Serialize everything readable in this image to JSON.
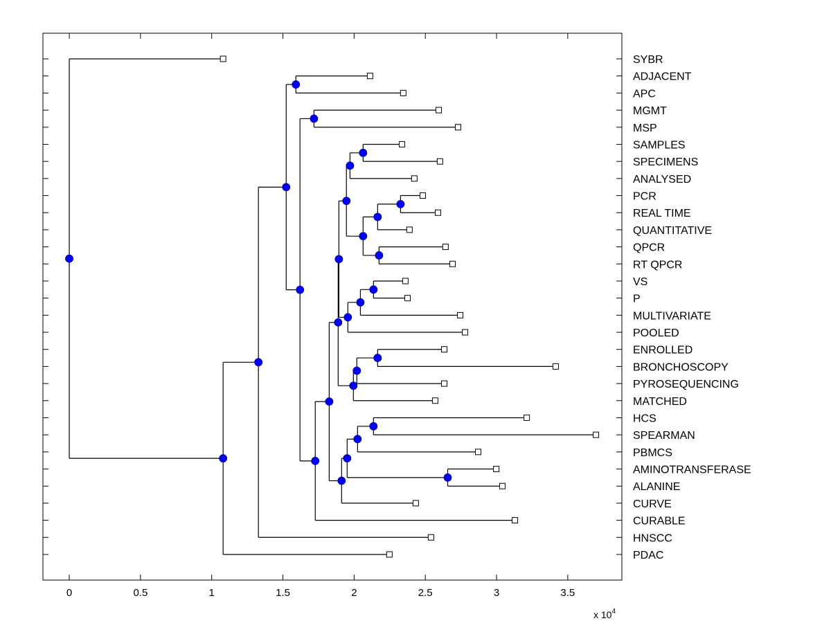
{
  "chart_data": {
    "type": "dendrogram",
    "title": "",
    "xlabel": "",
    "ylabel": "",
    "x_multiplier_label": "x 10",
    "x_multiplier_exponent": "4",
    "x_scale": 10000,
    "xlim": [
      -0.185,
      3.88
    ],
    "xticks": [
      0,
      0.5,
      1,
      1.5,
      2,
      2.5,
      3,
      3.5
    ],
    "xtick_labels": [
      "0",
      "0.5",
      "1",
      "1.5",
      "2",
      "2.5",
      "3",
      "3.5"
    ],
    "grid": false,
    "colors": {
      "internal_node_fill": "#0000ff",
      "leaf_marker_fill": "#ffffff",
      "line": "#000000"
    },
    "leaves": [
      {
        "label": "SYBR",
        "x": 1.08
      },
      {
        "label": "ADJACENT",
        "x": 2.112
      },
      {
        "label": "APC",
        "x": 2.345
      },
      {
        "label": "MGMT",
        "x": 2.594
      },
      {
        "label": "MSP",
        "x": 2.73
      },
      {
        "label": "SAMPLES",
        "x": 2.336
      },
      {
        "label": "SPECIMENS",
        "x": 2.603
      },
      {
        "label": "ANALYSED",
        "x": 2.423
      },
      {
        "label": "PCR",
        "x": 2.482
      },
      {
        "label": "REAL TIME",
        "x": 2.589
      },
      {
        "label": "QUANTITATIVE",
        "x": 2.389
      },
      {
        "label": "QPCR",
        "x": 2.642
      },
      {
        "label": "RT QPCR",
        "x": 2.691
      },
      {
        "label": "VS",
        "x": 2.36
      },
      {
        "label": "P",
        "x": 2.375
      },
      {
        "label": "MULTIVARIATE",
        "x": 2.745
      },
      {
        "label": "POOLED",
        "x": 2.779
      },
      {
        "label": "ENROLLED",
        "x": 2.633
      },
      {
        "label": "BRONCHOSCOPY",
        "x": 3.416
      },
      {
        "label": "PYROSEQUENCING",
        "x": 2.633
      },
      {
        "label": "MATCHED",
        "x": 2.569
      },
      {
        "label": "HCS",
        "x": 3.212
      },
      {
        "label": "SPEARMAN",
        "x": 3.698
      },
      {
        "label": "PBMCS",
        "x": 2.871
      },
      {
        "label": "AMINOTRANSFERASE",
        "x": 2.998
      },
      {
        "label": "ALANINE",
        "x": 3.041
      },
      {
        "label": "CURVE",
        "x": 2.433
      },
      {
        "label": "CURABLE",
        "x": 3.129
      },
      {
        "label": "HNSCC",
        "x": 2.54
      },
      {
        "label": "PDAC",
        "x": 2.248
      }
    ],
    "tree": {
      "x": 0.0,
      "children": [
        {
          "leaf": 0
        },
        {
          "x": 1.08,
          "children": [
            {
              "x": 1.328,
              "children": [
                {
                  "x": 1.523,
                  "children": [
                    {
                      "x": 1.591,
                      "children": [
                        {
                          "leaf": 1
                        },
                        {
                          "leaf": 2
                        }
                      ]
                    },
                    {
                      "x": 1.62,
                      "children": [
                        {
                          "x": 1.718,
                          "children": [
                            {
                              "leaf": 3
                            },
                            {
                              "leaf": 4
                            }
                          ]
                        },
                        {
                          "x": 1.727,
                          "children": [
                            {
                              "x": 1.825,
                              "children": [
                                {
                                  "x": 1.888,
                                  "children": [
                                    {
                                      "x": 1.893,
                                      "children": [
                                        {
                                          "x": 1.946,
                                          "children": [
                                            {
                                              "x": 1.971,
                                              "children": [
                                                {
                                                  "x": 2.063,
                                                  "children": [
                                                    {
                                                      "leaf": 5
                                                    },
                                                    {
                                                      "leaf": 6
                                                    }
                                                  ]
                                                },
                                                {
                                                  "leaf": 7
                                                }
                                              ]
                                            },
                                            {
                                              "x": 2.063,
                                              "children": [
                                                {
                                                  "x": 2.165,
                                                  "children": [
                                                    {
                                                      "x": 2.326,
                                                      "children": [
                                                        {
                                                          "leaf": 8
                                                        },
                                                        {
                                                          "leaf": 9
                                                        }
                                                      ]
                                                    },
                                                    {
                                                      "leaf": 10
                                                    }
                                                  ]
                                                },
                                                {
                                                  "x": 2.175,
                                                  "children": [
                                                    {
                                                      "leaf": 11
                                                    },
                                                    {
                                                      "leaf": 12
                                                    }
                                                  ]
                                                }
                                              ]
                                            }
                                          ]
                                        },
                                        {
                                          "x": 1.956,
                                          "children": [
                                            {
                                              "x": 2.044,
                                              "children": [
                                                {
                                                  "x": 2.136,
                                                  "children": [
                                                    {
                                                      "leaf": 13
                                                    },
                                                    {
                                                      "leaf": 14
                                                    }
                                                  ]
                                                },
                                                {
                                                  "leaf": 15
                                                }
                                              ]
                                            },
                                            {
                                              "leaf": 16
                                            }
                                          ]
                                        }
                                      ]
                                    },
                                    {
                                      "x": 1.995,
                                      "children": [
                                        {
                                          "x": 2.019,
                                          "children": [
                                            {
                                              "x": 2.165,
                                              "children": [
                                                {
                                                  "leaf": 17
                                                },
                                                {
                                                  "leaf": 18
                                                }
                                              ]
                                            },
                                            {
                                              "leaf": 19
                                            }
                                          ]
                                        },
                                        {
                                          "leaf": 20
                                        }
                                      ]
                                    }
                                  ]
                                },
                                {
                                  "x": 1.912,
                                  "children": [
                                    {
                                      "x": 1.951,
                                      "children": [
                                        {
                                          "x": 2.024,
                                          "children": [
                                            {
                                              "x": 2.136,
                                              "children": [
                                                {
                                                  "leaf": 21
                                                },
                                                {
                                                  "leaf": 22
                                                }
                                              ]
                                            },
                                            {
                                              "leaf": 23
                                            }
                                          ]
                                        },
                                        {
                                          "x": 2.657,
                                          "children": [
                                            {
                                              "leaf": 24
                                            },
                                            {
                                              "leaf": 25
                                            }
                                          ]
                                        }
                                      ]
                                    },
                                    {
                                      "leaf": 26
                                    }
                                  ]
                                }
                              ]
                            },
                            {
                              "leaf": 27
                            }
                          ]
                        }
                      ]
                    }
                  ]
                },
                {
                  "leaf": 28
                }
              ]
            },
            {
              "leaf": 29
            }
          ]
        }
      ]
    }
  }
}
